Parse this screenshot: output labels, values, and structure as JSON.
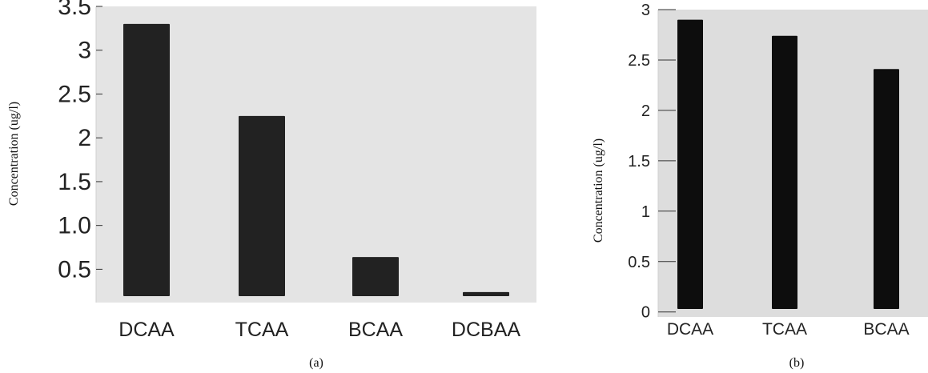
{
  "chart_data": [
    {
      "type": "bar",
      "panel_label": "(a)",
      "ylabel": "Concentration (ug/l)",
      "categories": [
        "DCAA",
        "TCAA",
        "BCAA",
        "DCBAA"
      ],
      "values": [
        3.3,
        2.25,
        0.64,
        0.24
      ],
      "yticks": [
        0.5,
        1.0,
        1.5,
        2,
        2.5,
        3,
        3.5
      ],
      "ytick_labels": [
        "0.5",
        "1.0",
        "1.5",
        "2",
        "2.5",
        "3",
        "3.5"
      ],
      "ylim": [
        0.12,
        3.5
      ],
      "grid": false,
      "legend": "none",
      "bar_color": "#222222",
      "plot_background": "#e4e4e4"
    },
    {
      "type": "bar",
      "panel_label": "(b)",
      "ylabel": "Concentration (ug/l)",
      "categories": [
        "DCAA",
        "TCAA",
        "BCAA"
      ],
      "values": [
        2.9,
        2.74,
        2.41
      ],
      "yticks": [
        0,
        0.5,
        1,
        1.5,
        2,
        2.5,
        3
      ],
      "ytick_labels": [
        "0",
        "0.5",
        "1",
        "1.5",
        "2",
        "2.5",
        "3"
      ],
      "ylim": [
        -0.05,
        3
      ],
      "grid": false,
      "legend": "none",
      "bar_color": "#0d0d0d",
      "plot_background": "#dddddd"
    }
  ]
}
